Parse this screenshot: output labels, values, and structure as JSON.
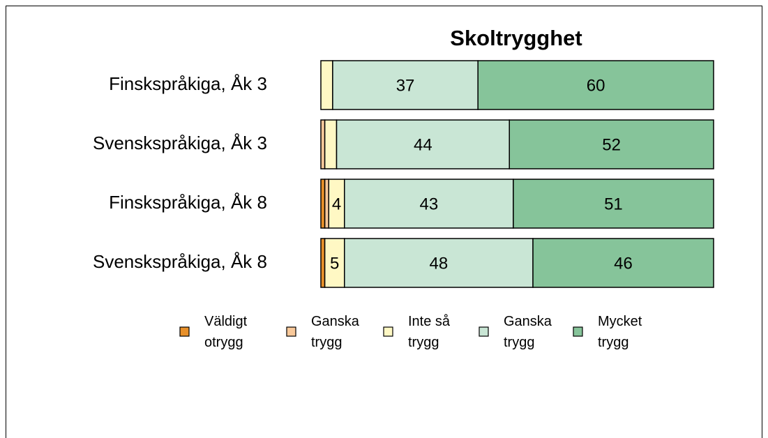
{
  "chart_data": {
    "type": "stacked_barh",
    "title": "Skoltrygghet",
    "categories": [
      "Finskspråkiga, Åk 3",
      "Svenskspråkiga, Åk 3",
      "Finskspråkiga, Åk 8",
      "Svenskspråkiga, Åk 8"
    ],
    "xlim": [
      0,
      100
    ],
    "series": [
      {
        "name": "Väldigt otrygg",
        "color": "#e8902a",
        "values": [
          0,
          0,
          1,
          1
        ],
        "value_labels": [
          null,
          null,
          null,
          null
        ]
      },
      {
        "name": "Ganska trygg",
        "color": "#f9c99a",
        "values": [
          0,
          1,
          1,
          0
        ],
        "value_labels": [
          null,
          null,
          null,
          null
        ]
      },
      {
        "name": "Inte så trygg",
        "color": "#fff8c4",
        "values": [
          3,
          3,
          4,
          5
        ],
        "value_labels": [
          null,
          null,
          "4",
          "5"
        ]
      },
      {
        "name": "Ganska trygg",
        "color": "#c9e6d5",
        "values": [
          37,
          44,
          43,
          48
        ],
        "value_labels": [
          "37",
          "44",
          "43",
          "48"
        ]
      },
      {
        "name": "Mycket trygg",
        "color": "#86c49a",
        "values": [
          60,
          52,
          51,
          46
        ],
        "value_labels": [
          "60",
          "52",
          "51",
          "46"
        ]
      }
    ]
  }
}
